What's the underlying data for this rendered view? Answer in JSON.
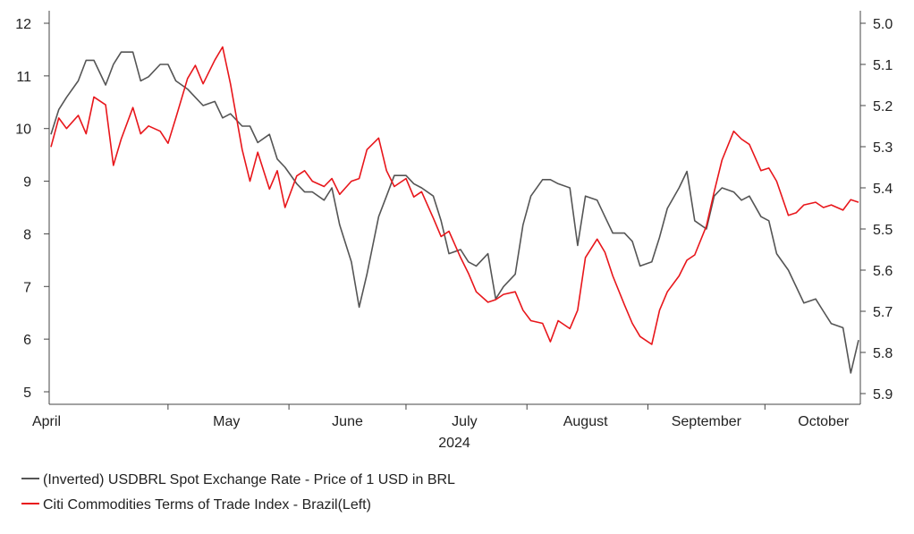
{
  "chart_data": {
    "type": "line",
    "x_axis": {
      "months": [
        "April",
        "May",
        "June",
        "July",
        "August",
        "September",
        "October"
      ],
      "year": "2024",
      "range": [
        "2024-04-01",
        "2024-10-25"
      ]
    },
    "y_left": {
      "ticks": [
        "5",
        "6",
        "7",
        "8",
        "9",
        "10",
        "11",
        "12"
      ],
      "ylim": [
        5,
        12
      ]
    },
    "y_right": {
      "ticks": [
        "5.0",
        "5.1",
        "5.2",
        "5.3",
        "5.4",
        "5.5",
        "5.6",
        "5.7",
        "5.8",
        "5.9"
      ],
      "ylim": [
        5.9,
        5.0
      ],
      "inverted": true
    },
    "grid": false,
    "legend_position": "bottom-left",
    "series": [
      {
        "name": "(Inverted) USDBRL Spot Exchange Rate - Price of 1 USD in BRL",
        "axis": "right",
        "color": "#555555",
        "x": [
          "2024-04-01",
          "2024-04-03",
          "2024-04-05",
          "2024-04-08",
          "2024-04-10",
          "2024-04-12",
          "2024-04-15",
          "2024-04-17",
          "2024-04-19",
          "2024-04-22",
          "2024-04-24",
          "2024-04-26",
          "2024-04-29",
          "2024-05-01",
          "2024-05-03",
          "2024-05-06",
          "2024-05-08",
          "2024-05-10",
          "2024-05-13",
          "2024-05-15",
          "2024-05-17",
          "2024-05-20",
          "2024-05-22",
          "2024-05-24",
          "2024-05-27",
          "2024-05-29",
          "2024-05-31",
          "2024-06-03",
          "2024-06-05",
          "2024-06-07",
          "2024-06-10",
          "2024-06-12",
          "2024-06-14",
          "2024-06-17",
          "2024-06-19",
          "2024-06-21",
          "2024-06-24",
          "2024-06-26",
          "2024-06-28",
          "2024-07-01",
          "2024-07-03",
          "2024-07-05",
          "2024-07-08",
          "2024-07-10",
          "2024-07-12",
          "2024-07-15",
          "2024-07-17",
          "2024-07-19",
          "2024-07-22",
          "2024-07-24",
          "2024-07-26",
          "2024-07-29",
          "2024-07-31",
          "2024-08-02",
          "2024-08-05",
          "2024-08-07",
          "2024-08-09",
          "2024-08-12",
          "2024-08-14",
          "2024-08-16",
          "2024-08-19",
          "2024-08-21",
          "2024-08-23",
          "2024-08-26",
          "2024-08-28",
          "2024-08-30",
          "2024-09-02",
          "2024-09-04",
          "2024-09-06",
          "2024-09-09",
          "2024-09-11",
          "2024-09-13",
          "2024-09-16",
          "2024-09-18",
          "2024-09-20",
          "2024-09-23",
          "2024-09-25",
          "2024-09-27",
          "2024-09-30",
          "2024-10-02",
          "2024-10-04",
          "2024-10-07",
          "2024-10-09",
          "2024-10-11",
          "2024-10-14",
          "2024-10-16",
          "2024-10-18",
          "2024-10-21",
          "2024-10-23",
          "2024-10-25"
        ],
        "values": [
          5.27,
          5.21,
          5.18,
          5.14,
          5.09,
          5.09,
          5.15,
          5.1,
          5.07,
          5.07,
          5.14,
          5.13,
          5.1,
          5.1,
          5.14,
          5.16,
          5.18,
          5.2,
          5.19,
          5.23,
          5.22,
          5.25,
          5.25,
          5.29,
          5.27,
          5.33,
          5.35,
          5.39,
          5.41,
          5.41,
          5.43,
          5.4,
          5.49,
          5.58,
          5.69,
          5.61,
          5.47,
          5.42,
          5.37,
          5.37,
          5.39,
          5.4,
          5.42,
          5.48,
          5.56,
          5.55,
          5.58,
          5.59,
          5.56,
          5.67,
          5.64,
          5.61,
          5.49,
          5.42,
          5.38,
          5.38,
          5.39,
          5.4,
          5.54,
          5.42,
          5.43,
          5.47,
          5.51,
          5.51,
          5.53,
          5.59,
          5.58,
          5.52,
          5.45,
          5.4,
          5.36,
          5.48,
          5.5,
          5.42,
          5.4,
          5.41,
          5.43,
          5.42,
          5.47,
          5.48,
          5.56,
          5.6,
          5.64,
          5.68,
          5.67,
          5.7,
          5.73,
          5.74,
          5.85,
          5.77
        ]
      },
      {
        "name": "Citi Commodities Terms of Trade Index - Brazil(Left)",
        "axis": "left",
        "color": "#e8161b",
        "x": [
          "2024-04-01",
          "2024-04-03",
          "2024-04-05",
          "2024-04-08",
          "2024-04-10",
          "2024-04-12",
          "2024-04-15",
          "2024-04-17",
          "2024-04-19",
          "2024-04-22",
          "2024-04-24",
          "2024-04-26",
          "2024-04-29",
          "2024-05-01",
          "2024-05-03",
          "2024-05-06",
          "2024-05-08",
          "2024-05-10",
          "2024-05-13",
          "2024-05-15",
          "2024-05-17",
          "2024-05-20",
          "2024-05-22",
          "2024-05-24",
          "2024-05-27",
          "2024-05-29",
          "2024-05-31",
          "2024-06-03",
          "2024-06-05",
          "2024-06-07",
          "2024-06-10",
          "2024-06-12",
          "2024-06-14",
          "2024-06-17",
          "2024-06-19",
          "2024-06-21",
          "2024-06-24",
          "2024-06-26",
          "2024-06-28",
          "2024-07-01",
          "2024-07-03",
          "2024-07-05",
          "2024-07-08",
          "2024-07-10",
          "2024-07-12",
          "2024-07-15",
          "2024-07-17",
          "2024-07-19",
          "2024-07-22",
          "2024-07-24",
          "2024-07-26",
          "2024-07-29",
          "2024-07-31",
          "2024-08-02",
          "2024-08-05",
          "2024-08-07",
          "2024-08-09",
          "2024-08-12",
          "2024-08-14",
          "2024-08-16",
          "2024-08-19",
          "2024-08-21",
          "2024-08-23",
          "2024-08-26",
          "2024-08-28",
          "2024-08-30",
          "2024-09-02",
          "2024-09-04",
          "2024-09-06",
          "2024-09-09",
          "2024-09-11",
          "2024-09-13",
          "2024-09-16",
          "2024-09-18",
          "2024-09-20",
          "2024-09-23",
          "2024-09-25",
          "2024-09-27",
          "2024-09-30",
          "2024-10-02",
          "2024-10-04",
          "2024-10-07",
          "2024-10-09",
          "2024-10-11",
          "2024-10-14",
          "2024-10-16",
          "2024-10-18",
          "2024-10-21",
          "2024-10-23",
          "2024-10-25"
        ],
        "values": [
          9.65,
          10.2,
          10.0,
          10.25,
          9.9,
          10.6,
          10.45,
          9.3,
          9.8,
          10.4,
          9.9,
          10.05,
          9.95,
          9.72,
          10.2,
          10.95,
          11.2,
          10.85,
          11.3,
          11.55,
          10.85,
          9.6,
          9.0,
          9.55,
          8.85,
          9.2,
          8.5,
          9.1,
          9.2,
          9.0,
          8.9,
          9.05,
          8.75,
          9.0,
          9.05,
          9.6,
          9.82,
          9.2,
          8.9,
          9.05,
          8.7,
          8.8,
          8.3,
          7.95,
          8.05,
          7.55,
          7.25,
          6.9,
          6.7,
          6.75,
          6.85,
          6.9,
          6.55,
          6.35,
          6.3,
          5.95,
          6.35,
          6.2,
          6.55,
          7.55,
          7.9,
          7.65,
          7.2,
          6.65,
          6.3,
          6.05,
          5.9,
          6.55,
          6.9,
          7.2,
          7.5,
          7.6,
          8.15,
          8.8,
          9.4,
          9.95,
          9.8,
          9.7,
          9.2,
          9.25,
          9.0,
          8.35,
          8.4,
          8.55,
          8.6,
          8.5,
          8.55,
          8.45,
          8.65,
          8.6
        ]
      }
    ]
  }
}
